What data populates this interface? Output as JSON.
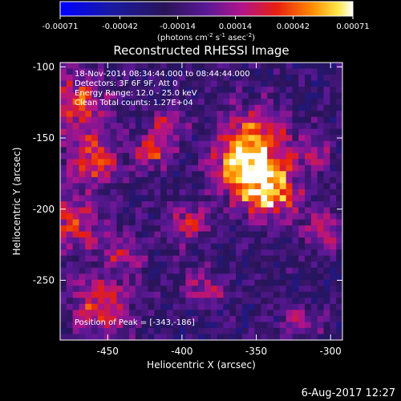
{
  "chart_data": {
    "type": "heatmap",
    "title": "Reconstructed RHESSI Image",
    "colorbar": {
      "min": -0.00071,
      "max": 0.00071,
      "ticks": [
        "-0.00071",
        "-0.00042",
        "-0.00014",
        "0.00014",
        "0.00042",
        "0.00071"
      ],
      "units_main": "(photons cm",
      "units_exp1": "-2",
      "units_mid1": " s",
      "units_exp2": "-1",
      "units_mid2": " asec",
      "units_exp3": "-2",
      "units_end": ")"
    },
    "xlabel": "Heliocentric X (arcsec)",
    "ylabel": "Heliocentric Y (arcsec)",
    "xlim": [
      -482,
      -292
    ],
    "ylim": [
      -292,
      -97
    ],
    "xticks": [
      -450,
      -400,
      -350,
      -300
    ],
    "yticks": [
      -100,
      -150,
      -200,
      -250
    ],
    "annotations": [
      "18-Nov-2014 08:34:44.000 to 08:44:44.000",
      "Detectors: 3F 6F 9F, Att 0",
      "Energy Range: 12.0 - 25.0 keV",
      "Clean     Total counts: 1.27E+04"
    ],
    "peak_label": "Position of Peak = [-343,-186]",
    "peak": [
      -343,
      -186
    ],
    "grid_cells": [
      45,
      46
    ],
    "sources": [
      {
        "x": -343,
        "y": -186,
        "sigma": 14,
        "amp": 1.0
      },
      {
        "x": -350,
        "y": -152,
        "sigma": 16,
        "amp": 0.75
      },
      {
        "x": -365,
        "y": -170,
        "sigma": 12,
        "amp": 0.55
      },
      {
        "x": -470,
        "y": -125,
        "sigma": 14,
        "amp": 0.6
      },
      {
        "x": -460,
        "y": -165,
        "sigma": 13,
        "amp": 0.55
      },
      {
        "x": -475,
        "y": -210,
        "sigma": 14,
        "amp": 0.55
      },
      {
        "x": -440,
        "y": -230,
        "sigma": 10,
        "amp": 0.4
      },
      {
        "x": -455,
        "y": -268,
        "sigma": 15,
        "amp": 0.6
      },
      {
        "x": -420,
        "y": -160,
        "sigma": 9,
        "amp": 0.55
      },
      {
        "x": -410,
        "y": -140,
        "sigma": 8,
        "amp": 0.45
      },
      {
        "x": -395,
        "y": -210,
        "sigma": 10,
        "amp": 0.5
      },
      {
        "x": -385,
        "y": -255,
        "sigma": 10,
        "amp": 0.4
      },
      {
        "x": -305,
        "y": -215,
        "sigma": 10,
        "amp": 0.45
      },
      {
        "x": -310,
        "y": -160,
        "sigma": 8,
        "amp": 0.35
      },
      {
        "x": -320,
        "y": -280,
        "sigma": 9,
        "amp": 0.35
      }
    ],
    "colors": {
      "background": "#000000",
      "text": "#ffffff"
    }
  },
  "timestamp": "6-Aug-2017 12:27"
}
